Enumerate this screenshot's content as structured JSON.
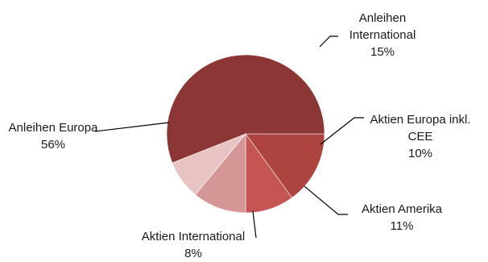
{
  "chart_data": {
    "type": "pie",
    "title": "",
    "legend": "none",
    "slices": [
      {
        "label": "Anleihen International",
        "label_lines": [
          "Anleihen",
          "International"
        ],
        "value": 15,
        "value_label": "15%",
        "color": "#ad4440"
      },
      {
        "label": "Aktien Europa inkl. CEE",
        "label_lines": [
          "Aktien Europa inkl.",
          "CEE"
        ],
        "value": 10,
        "value_label": "10%",
        "color": "#c45553"
      },
      {
        "label": "Aktien Amerika",
        "label_lines": [
          "Aktien Amerika"
        ],
        "value": 11,
        "value_label": "11%",
        "color": "#d49796"
      },
      {
        "label": "Aktien International",
        "label_lines": [
          "Aktien International"
        ],
        "value": 8,
        "value_label": "8%",
        "color": "#e8c3c3"
      },
      {
        "label": "Anleihen Europa",
        "label_lines": [
          "Anleihen Europa"
        ],
        "value": 56,
        "value_label": "56%",
        "color": "#8c3735"
      }
    ]
  }
}
